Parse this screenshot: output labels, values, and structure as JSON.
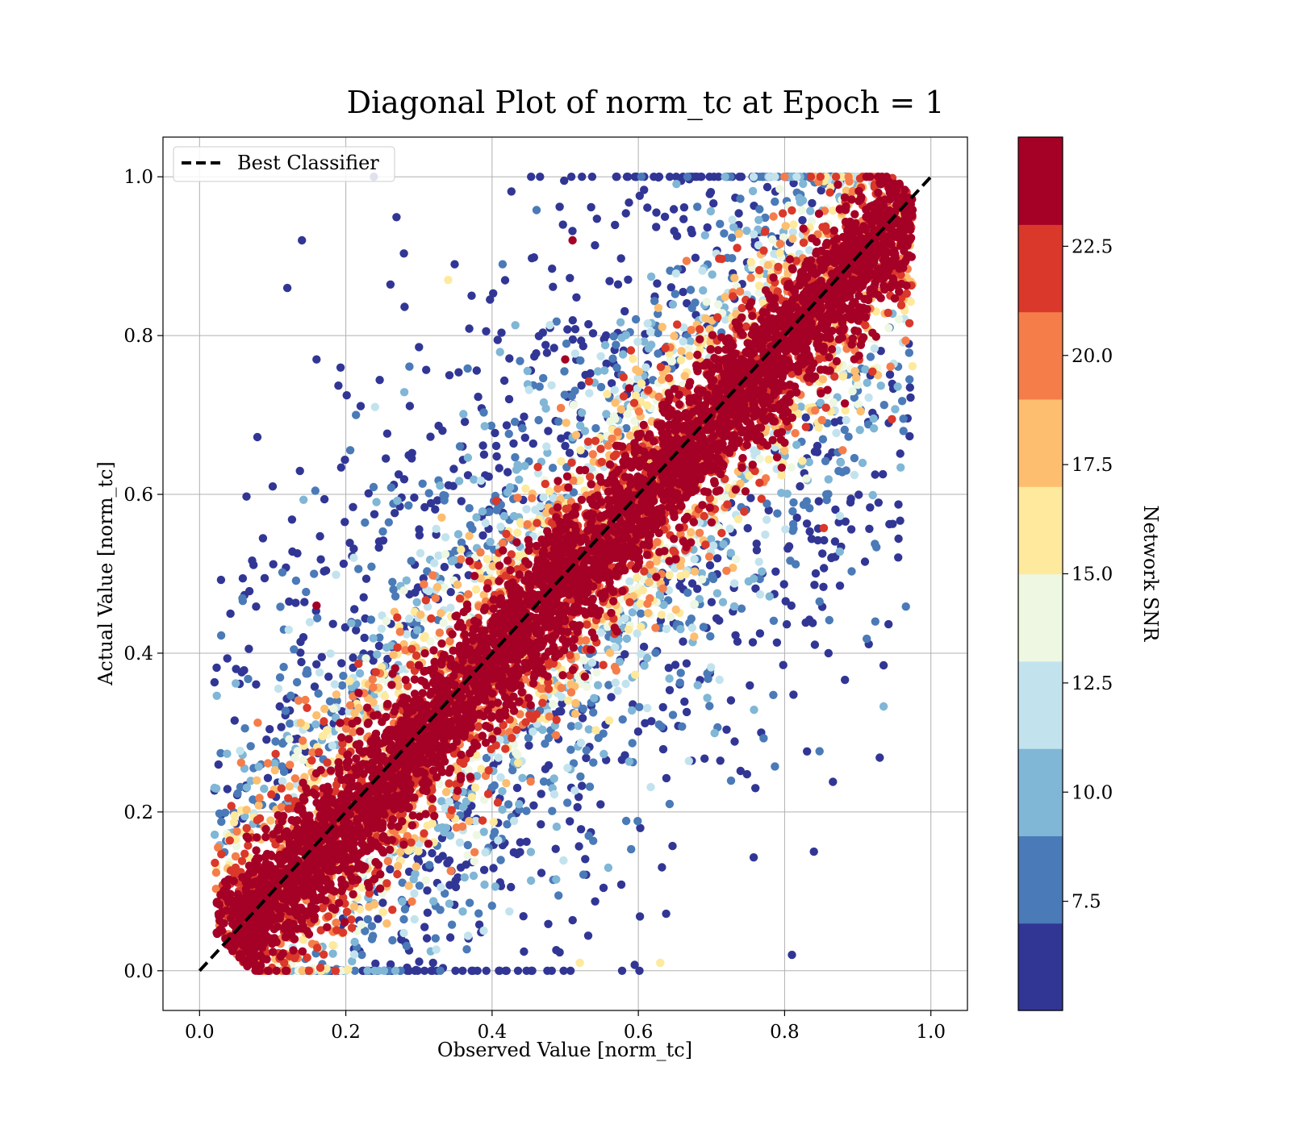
{
  "chart_data": {
    "type": "scatter",
    "title": "Diagonal Plot of norm_tc at Epoch = 1",
    "xlabel": "Observed Value [norm_tc]",
    "ylabel": "Actual Value [norm_tc]",
    "xlim": [
      -0.05,
      1.05
    ],
    "ylim": [
      -0.05,
      1.05
    ],
    "xticks": [
      "0.0",
      "0.2",
      "0.4",
      "0.6",
      "0.8",
      "1.0"
    ],
    "yticks": [
      "0.0",
      "0.2",
      "0.4",
      "0.6",
      "0.8",
      "1.0"
    ],
    "grid": true,
    "legend": {
      "position": "upper-left",
      "entries": [
        "Best Classifier"
      ]
    },
    "reference_line": {
      "name": "Best Classifier",
      "style": "dashed",
      "color": "#000000",
      "x": [
        0,
        1
      ],
      "y": [
        0,
        1
      ]
    },
    "colorbar": {
      "label": "Network SNR",
      "range": [
        5.0,
        25.0
      ],
      "ticks": [
        "7.5",
        "10.0",
        "12.5",
        "15.0",
        "17.5",
        "20.0",
        "22.5"
      ],
      "colors": [
        "#313695",
        "#4a7ab7",
        "#80b6d6",
        "#c2e3ee",
        "#eef7e1",
        "#fee99d",
        "#fdbe70",
        "#f57d4a",
        "#da382a",
        "#a50026"
      ]
    },
    "point_sample": [
      {
        "x": 0.05,
        "y": 0.05,
        "snr": 24.0
      },
      {
        "x": 0.1,
        "y": 0.12,
        "snr": 23.5
      },
      {
        "x": 0.2,
        "y": 0.19,
        "snr": 24.5
      },
      {
        "x": 0.3,
        "y": 0.31,
        "snr": 23.8
      },
      {
        "x": 0.4,
        "y": 0.4,
        "snr": 24.2
      },
      {
        "x": 0.5,
        "y": 0.49,
        "snr": 23.9
      },
      {
        "x": 0.6,
        "y": 0.61,
        "snr": 24.1
      },
      {
        "x": 0.7,
        "y": 0.7,
        "snr": 24.3
      },
      {
        "x": 0.8,
        "y": 0.79,
        "snr": 23.7
      },
      {
        "x": 0.9,
        "y": 0.91,
        "snr": 24.4
      },
      {
        "x": 0.12,
        "y": 0.86,
        "snr": 6.0
      },
      {
        "x": 0.14,
        "y": 0.92,
        "snr": 6.0
      },
      {
        "x": 0.16,
        "y": 0.77,
        "snr": 6.0
      },
      {
        "x": 0.1,
        "y": 0.61,
        "snr": 6.0
      },
      {
        "x": 0.89,
        "y": 0.59,
        "snr": 6.0
      },
      {
        "x": 0.84,
        "y": 0.15,
        "snr": 6.0
      },
      {
        "x": 0.81,
        "y": 0.02,
        "snr": 6.0
      },
      {
        "x": 0.76,
        "y": 0.23,
        "snr": 6.0
      },
      {
        "x": 0.86,
        "y": 0.4,
        "snr": 6.0
      },
      {
        "x": 0.05,
        "y": 0.38,
        "snr": 6.0
      },
      {
        "x": 0.16,
        "y": 0.46,
        "snr": 24.5
      },
      {
        "x": 0.51,
        "y": 0.92,
        "snr": 23.0
      },
      {
        "x": 0.5,
        "y": 0.77,
        "snr": 23.0
      },
      {
        "x": 0.34,
        "y": 0.87,
        "snr": 16.5
      },
      {
        "x": 0.52,
        "y": 0.01,
        "snr": 16.5
      },
      {
        "x": 0.63,
        "y": 0.01,
        "snr": 16.0
      },
      {
        "x": 0.83,
        "y": 0.62,
        "snr": 14.0
      },
      {
        "x": 0.24,
        "y": 0.71,
        "snr": 12.0
      }
    ]
  }
}
